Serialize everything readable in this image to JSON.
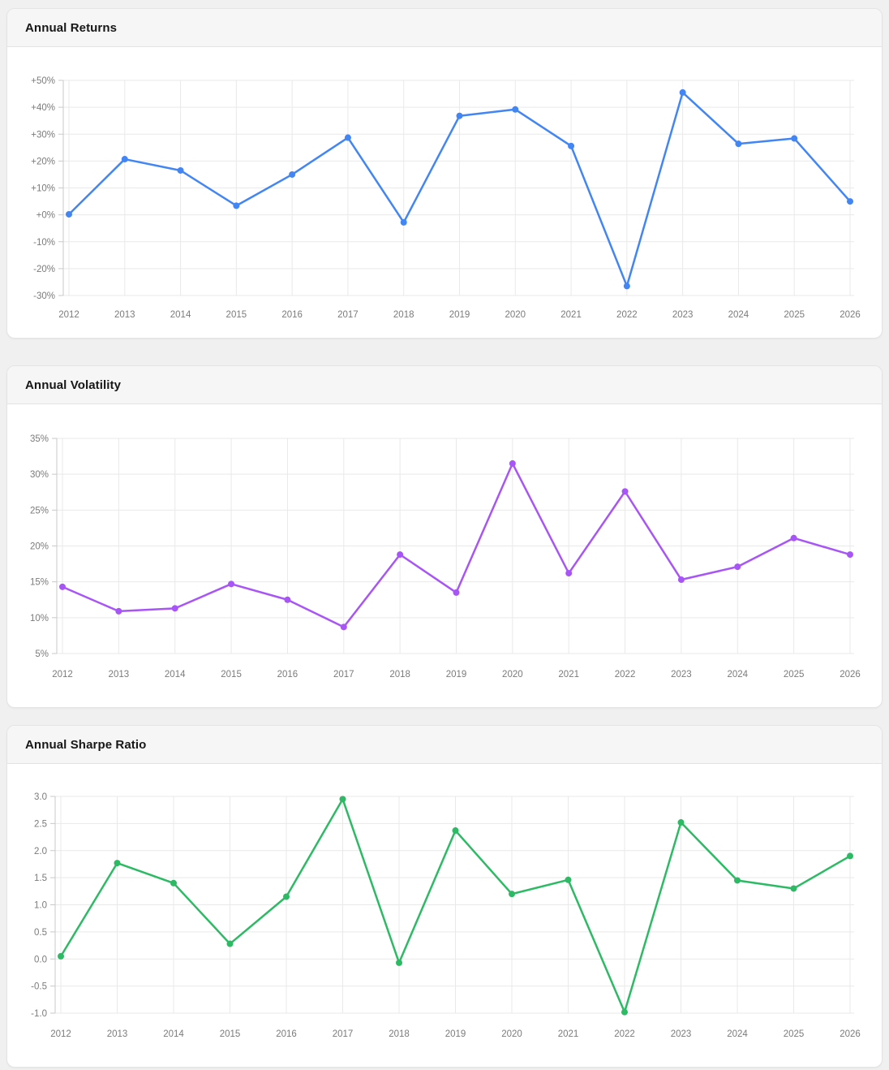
{
  "page": {
    "background": "#f0f0f1"
  },
  "chart_data": [
    {
      "type": "line",
      "title": "Annual Returns",
      "color": "#4285f4",
      "categories": [
        "2012",
        "2013",
        "2014",
        "2015",
        "2016",
        "2017",
        "2018",
        "2019",
        "2020",
        "2021",
        "2022",
        "2023",
        "2024",
        "2025",
        "2026"
      ],
      "values": [
        0.2,
        20.7,
        16.5,
        3.4,
        15.0,
        28.7,
        -2.8,
        36.8,
        39.2,
        25.6,
        -26.5,
        45.5,
        26.4,
        28.4,
        5.0
      ],
      "y_ticks": [
        50,
        40,
        30,
        20,
        10,
        0,
        -10,
        -20,
        -30
      ],
      "y_tick_labels": [
        "+50%",
        "+40%",
        "+30%",
        "+20%",
        "+10%",
        "+0%",
        "-10%",
        "-20%",
        "-30%"
      ],
      "ylim": [
        -30,
        50
      ],
      "xlabel": "",
      "ylabel": "",
      "grid": true,
      "markers": true,
      "legend": "none"
    },
    {
      "type": "line",
      "title": "Annual Volatility",
      "color": "#a855f7",
      "categories": [
        "2012",
        "2013",
        "2014",
        "2015",
        "2016",
        "2017",
        "2018",
        "2019",
        "2020",
        "2021",
        "2022",
        "2023",
        "2024",
        "2025",
        "2026"
      ],
      "values": [
        14.3,
        10.9,
        11.3,
        14.7,
        12.5,
        8.7,
        18.8,
        13.5,
        31.5,
        16.2,
        27.6,
        15.3,
        17.1,
        21.1,
        18.8
      ],
      "y_ticks": [
        35,
        30,
        25,
        20,
        15,
        10,
        5
      ],
      "y_tick_labels": [
        "35%",
        "30%",
        "25%",
        "20%",
        "15%",
        "10%",
        "5%"
      ],
      "ylim": [
        5,
        35
      ],
      "xlabel": "",
      "ylabel": "",
      "grid": true,
      "markers": true,
      "legend": "none"
    },
    {
      "type": "line",
      "title": "Annual Sharpe Ratio",
      "color": "#2dba64",
      "categories": [
        "2012",
        "2013",
        "2014",
        "2015",
        "2016",
        "2017",
        "2018",
        "2019",
        "2020",
        "2021",
        "2022",
        "2023",
        "2024",
        "2025",
        "2026"
      ],
      "values": [
        0.05,
        1.77,
        1.4,
        0.28,
        1.15,
        2.95,
        -0.07,
        2.37,
        1.2,
        1.46,
        -0.98,
        2.52,
        1.45,
        1.3,
        1.9
      ],
      "y_ticks": [
        3.0,
        2.5,
        2.0,
        1.5,
        1.0,
        0.5,
        0.0,
        -0.5,
        -1.0
      ],
      "y_tick_labels": [
        "3.0",
        "2.5",
        "2.0",
        "1.5",
        "1.0",
        "0.5",
        "0.0",
        "-0.5",
        "-1.0"
      ],
      "ylim": [
        -1.0,
        3.0
      ],
      "xlabel": "",
      "ylabel": "",
      "grid": true,
      "markers": true,
      "legend": "none"
    }
  ]
}
